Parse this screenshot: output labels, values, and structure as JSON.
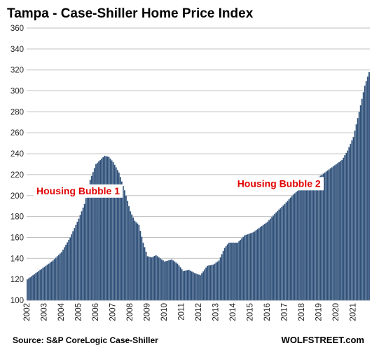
{
  "chart_data": {
    "type": "bar",
    "title": "Tampa - Case-Shiller Home Price Index",
    "source": "Source: S&P CoreLogic Case-Shiller",
    "brand": "WOLFSTREET.com",
    "ylim": [
      100,
      360
    ],
    "yticks": [
      100,
      120,
      140,
      160,
      180,
      200,
      220,
      240,
      260,
      280,
      300,
      320,
      340,
      360
    ],
    "grid": "horizontal",
    "frequency": "monthly",
    "xtick_labels": [
      "2002",
      "2003",
      "2004",
      "2005",
      "2006",
      "2007",
      "2008",
      "2009",
      "2010",
      "2011",
      "2012",
      "2013",
      "2014",
      "2015",
      "2016",
      "2017",
      "2018",
      "2019",
      "2020",
      "2021"
    ],
    "annotations": [
      {
        "text": "Housing Bubble 1",
        "anchor_year": 2005.0,
        "value": 200
      },
      {
        "text": "Housing Bubble 2",
        "anchor_year": 2016.7,
        "value": 207
      }
    ],
    "series": [
      {
        "anchors": [
          [
            "2002-01",
            120
          ],
          [
            "2002-07",
            126
          ],
          [
            "2003-01",
            132
          ],
          [
            "2003-07",
            138
          ],
          [
            "2004-01",
            146
          ],
          [
            "2004-07",
            160
          ],
          [
            "2005-01",
            178
          ],
          [
            "2005-05",
            192
          ],
          [
            "2005-09",
            215
          ],
          [
            "2006-01",
            230
          ],
          [
            "2006-07",
            238
          ],
          [
            "2006-10",
            237
          ],
          [
            "2007-01",
            232
          ],
          [
            "2007-05",
            222
          ],
          [
            "2007-09",
            205
          ],
          [
            "2008-01",
            185
          ],
          [
            "2008-04",
            176
          ],
          [
            "2008-07",
            172
          ],
          [
            "2008-10",
            155
          ],
          [
            "2009-01",
            142
          ],
          [
            "2009-04",
            141
          ],
          [
            "2009-07",
            143
          ],
          [
            "2009-10",
            140
          ],
          [
            "2010-01",
            137
          ],
          [
            "2010-06",
            139
          ],
          [
            "2010-10",
            135
          ],
          [
            "2011-02",
            128
          ],
          [
            "2011-06",
            129
          ],
          [
            "2011-10",
            126
          ],
          [
            "2012-02",
            124
          ],
          [
            "2012-07",
            133
          ],
          [
            "2012-11",
            134
          ],
          [
            "2013-03",
            138
          ],
          [
            "2013-07",
            150
          ],
          [
            "2013-10",
            155
          ],
          [
            "2014-04",
            155
          ],
          [
            "2014-09",
            162
          ],
          [
            "2015-03",
            165
          ],
          [
            "2015-08",
            170
          ],
          [
            "2016-01",
            175
          ],
          [
            "2016-07",
            184
          ],
          [
            "2017-01",
            192
          ],
          [
            "2017-07",
            201
          ],
          [
            "2018-01",
            208
          ],
          [
            "2018-07",
            213
          ],
          [
            "2019-01",
            218
          ],
          [
            "2019-07",
            224
          ],
          [
            "2020-01",
            230
          ],
          [
            "2020-05",
            234
          ],
          [
            "2020-09",
            243
          ],
          [
            "2021-01",
            256
          ],
          [
            "2021-05",
            280
          ],
          [
            "2021-09",
            305
          ],
          [
            "2021-12",
            318
          ]
        ]
      }
    ]
  }
}
